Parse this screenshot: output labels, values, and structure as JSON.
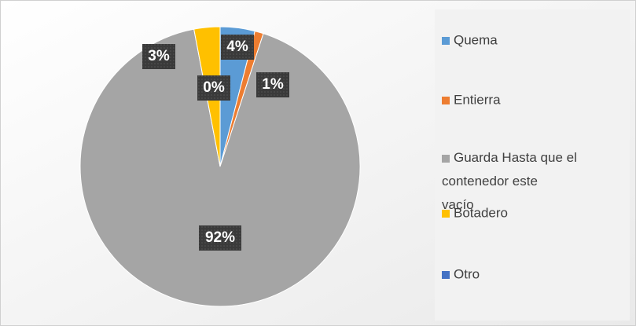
{
  "chart_data": {
    "type": "pie",
    "categories": [
      "Quema",
      "Entierra",
      "Guarda Hasta que el contenedor este vacío",
      "Botadero",
      "Otro"
    ],
    "values": [
      4,
      1,
      92,
      3,
      0
    ],
    "value_labels": [
      "4%",
      "1%",
      "92%",
      "3%",
      "0%"
    ],
    "colors": [
      "#5b9bd5",
      "#ed7d31",
      "#a5a5a5",
      "#ffc000",
      "#4472c4"
    ],
    "legend": "right"
  }
}
